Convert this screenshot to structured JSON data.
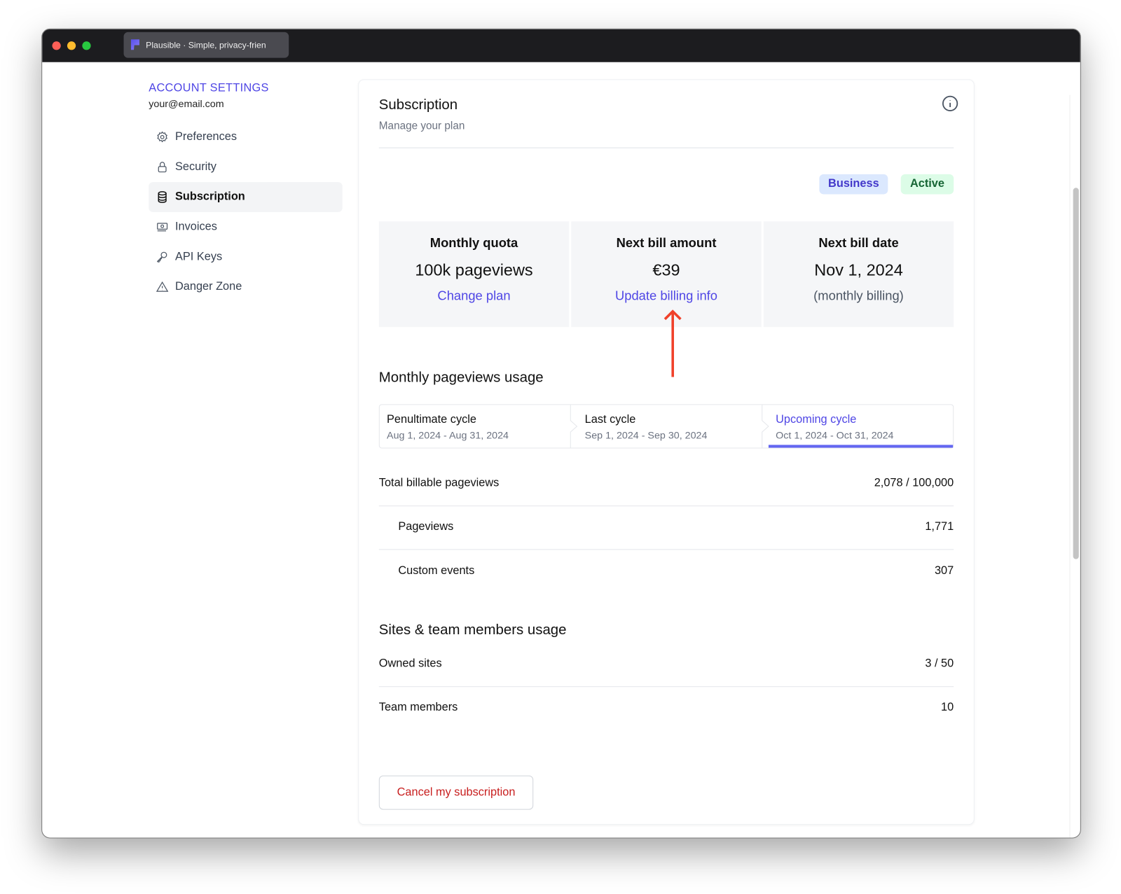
{
  "browser": {
    "tab_title": "Plausible · Simple, privacy-frien"
  },
  "sidebar": {
    "title": "ACCOUNT SETTINGS",
    "email": "your@email.com",
    "items": [
      {
        "label": "Preferences",
        "icon": "gear-icon"
      },
      {
        "label": "Security",
        "icon": "lock-icon"
      },
      {
        "label": "Subscription",
        "icon": "database-icon",
        "active": true
      },
      {
        "label": "Invoices",
        "icon": "banknote-icon"
      },
      {
        "label": "API Keys",
        "icon": "key-icon"
      },
      {
        "label": "Danger Zone",
        "icon": "warning-icon"
      }
    ]
  },
  "main": {
    "title": "Subscription",
    "subtitle": "Manage your plan",
    "badges": {
      "plan": "Business",
      "status": "Active"
    },
    "stats": [
      {
        "label": "Monthly quota",
        "value": "100k pageviews",
        "action": "Change plan"
      },
      {
        "label": "Next bill amount",
        "value": "€39",
        "action": "Update billing info"
      },
      {
        "label": "Next bill date",
        "value": "Nov 1, 2024",
        "note": "(monthly billing)"
      }
    ],
    "pageviews_heading": "Monthly pageviews usage",
    "cycles": [
      {
        "name": "Penultimate cycle",
        "dates": "Aug 1, 2024 - Aug 31, 2024"
      },
      {
        "name": "Last cycle",
        "dates": "Sep 1, 2024 - Sep 30, 2024"
      },
      {
        "name": "Upcoming cycle",
        "dates": "Oct 1, 2024 - Oct 31, 2024",
        "selected": true
      }
    ],
    "usage": [
      {
        "label": "Total billable pageviews",
        "value": "2,078 / 100,000"
      },
      {
        "label": "Pageviews",
        "value": "1,771"
      },
      {
        "label": "Custom events",
        "value": "307"
      }
    ],
    "sites_heading": "Sites & team members usage",
    "sites": [
      {
        "label": "Owned sites",
        "value": "3 / 50"
      },
      {
        "label": "Team members",
        "value": "10"
      }
    ],
    "cancel_label": "Cancel my subscription"
  },
  "colors": {
    "accent": "#4f46e5",
    "danger": "#c81e1e",
    "annotation_arrow": "#f0412a",
    "active_badge": "#166534"
  }
}
